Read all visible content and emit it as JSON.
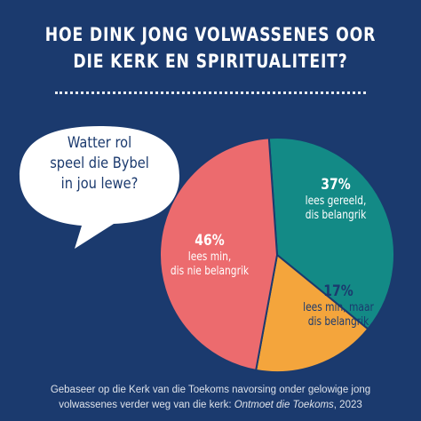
{
  "title_line1": "HOE DINK JONG VOLWASSENES OOR",
  "title_line2": "DIE KERK EN SPIRITUALITEIT?",
  "question": [
    "Watter rol",
    "speel die Bybel",
    "in jou lewe?"
  ],
  "footer": {
    "line1": "Gebaseer op die Kerk van die Toekoms navorsing onder gelowige jong",
    "line2_plain": "volwassenes verder weg van die kerk: ",
    "line2_italic": "Ontmoet die Toekoms",
    "line2_end": ", 2023"
  },
  "chart_data": {
    "type": "pie",
    "title": "HOE DINK JONG VOLWASSENES OOR DIE KERK EN SPIRITUALITEIT?",
    "slices": [
      {
        "percent_label": "37%",
        "value": 37,
        "desc": [
          "lees gereeld,",
          "dis belangrik"
        ],
        "color": "#138a86"
      },
      {
        "percent_label": "17%",
        "value": 17,
        "desc": [
          "lees min, maar",
          "dis belangrik"
        ],
        "color": "#f4a53c"
      },
      {
        "percent_label": "46%",
        "value": 46,
        "desc": [
          "lees min,",
          "dis nie belangrik"
        ],
        "color": "#ec6b6e"
      }
    ]
  },
  "colors": {
    "background": "#1b3a6e",
    "bubble": "#ffffff"
  }
}
